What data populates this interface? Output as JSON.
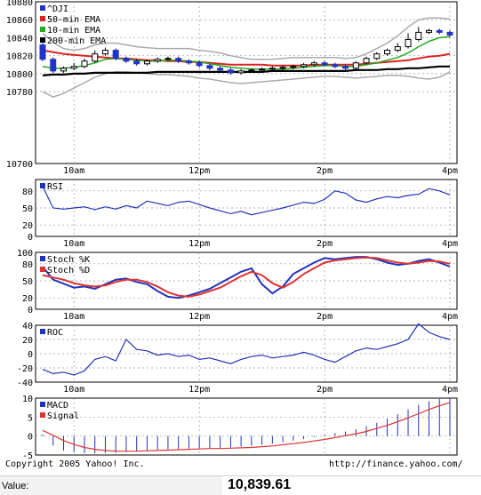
{
  "footer": {
    "copyright": "Copyright 2005 Yahoo! Inc.",
    "url": "http://finance.yahoo.com/"
  },
  "value_bar": {
    "label": "Value:",
    "value": "10,839.61"
  },
  "colors": {
    "candle": "#2233cc",
    "ema50": "#dd2222",
    "ema10": "#22aa22",
    "ema200": "#000000",
    "bollinger": "#aaaaaa",
    "indicator": "#2233bb",
    "signal": "#dd3333"
  },
  "chart_data": [
    {
      "type": "candlestick",
      "panel": "price",
      "ylim": [
        10700,
        10880
      ],
      "yticks": [
        10700,
        10780,
        10800,
        10820,
        10840,
        10860,
        10880
      ],
      "xtick_labels": [
        "10am",
        "12pm",
        "2pm",
        "4pm"
      ],
      "legend": [
        "^DJI",
        "50-min EMA",
        "10-min EMA",
        "200-min EMA"
      ],
      "x_minutes": [
        0,
        10,
        20,
        30,
        40,
        50,
        60,
        70,
        80,
        90,
        100,
        110,
        120,
        130,
        140,
        150,
        160,
        170,
        180,
        190,
        200,
        210,
        220,
        230,
        240,
        250,
        260,
        270,
        280,
        290,
        300,
        310,
        320,
        330,
        340,
        350,
        360,
        370,
        380,
        390
      ],
      "close": [
        10816,
        10803,
        10806,
        10808,
        10814,
        10822,
        10826,
        10817,
        10814,
        10811,
        10814,
        10816,
        10817,
        10814,
        10812,
        10809,
        10806,
        10804,
        10801,
        10803,
        10804,
        10805,
        10806,
        10807,
        10808,
        10810,
        10812,
        10810,
        10808,
        10806,
        10812,
        10817,
        10822,
        10826,
        10830,
        10838,
        10846,
        10848,
        10846,
        10843
      ],
      "open": [
        10832,
        10816,
        10803,
        10806,
        10808,
        10814,
        10822,
        10826,
        10817,
        10814,
        10811,
        10814,
        10816,
        10817,
        10814,
        10812,
        10809,
        10806,
        10804,
        10801,
        10803,
        10804,
        10805,
        10806,
        10807,
        10808,
        10810,
        10812,
        10810,
        10808,
        10806,
        10812,
        10817,
        10822,
        10826,
        10830,
        10838,
        10846,
        10848,
        10846
      ],
      "high": [
        10834,
        10818,
        10808,
        10812,
        10817,
        10826,
        10829,
        10828,
        10819,
        10816,
        10816,
        10818,
        10819,
        10819,
        10816,
        10814,
        10811,
        10808,
        10806,
        10805,
        10806,
        10807,
        10808,
        10809,
        10810,
        10812,
        10814,
        10814,
        10812,
        10810,
        10814,
        10819,
        10824,
        10828,
        10834,
        10845,
        10852,
        10850,
        10850,
        10848
      ],
      "low": [
        10814,
        10801,
        10801,
        10804,
        10806,
        10812,
        10820,
        10815,
        10812,
        10809,
        10809,
        10812,
        10814,
        10812,
        10810,
        10807,
        10804,
        10801,
        10799,
        10799,
        10801,
        10802,
        10803,
        10804,
        10805,
        10806,
        10808,
        10808,
        10806,
        10804,
        10804,
        10810,
        10815,
        10820,
        10824,
        10828,
        10836,
        10844,
        10844,
        10841
      ],
      "ema50": [
        10826,
        10824,
        10822,
        10821,
        10820,
        10819,
        10818,
        10817,
        10817,
        10816,
        10815,
        10815,
        10814,
        10814,
        10813,
        10813,
        10812,
        10811,
        10810,
        10810,
        10810,
        10810,
        10809,
        10809,
        10809,
        10809,
        10810,
        10810,
        10810,
        10810,
        10810,
        10811,
        10812,
        10813,
        10814,
        10815,
        10817,
        10819,
        10820,
        10822
      ],
      "ema10": [
        10808,
        10806,
        10806,
        10807,
        10809,
        10812,
        10816,
        10817,
        10816,
        10815,
        10814,
        10814,
        10815,
        10815,
        10814,
        10813,
        10811,
        10809,
        10807,
        10806,
        10805,
        10805,
        10805,
        10805,
        10806,
        10807,
        10808,
        10809,
        10809,
        10808,
        10808,
        10810,
        10812,
        10815,
        10818,
        10823,
        10830,
        10836,
        10840,
        10841
      ],
      "ema200": [
        10798,
        10799,
        10799,
        10800,
        10800,
        10801,
        10801,
        10801,
        10801,
        10801,
        10801,
        10802,
        10802,
        10802,
        10802,
        10802,
        10802,
        10802,
        10802,
        10802,
        10802,
        10802,
        10803,
        10803,
        10803,
        10803,
        10803,
        10803,
        10803,
        10803,
        10804,
        10804,
        10804,
        10805,
        10805,
        10806,
        10806,
        10807,
        10808,
        10808
      ],
      "boll_upper": [
        10845,
        10835,
        10828,
        10826,
        10828,
        10832,
        10834,
        10834,
        10832,
        10830,
        10829,
        10828,
        10828,
        10828,
        10828,
        10826,
        10825,
        10823,
        10820,
        10818,
        10816,
        10816,
        10816,
        10817,
        10818,
        10818,
        10818,
        10818,
        10818,
        10817,
        10818,
        10822,
        10828,
        10834,
        10842,
        10852,
        10860,
        10862,
        10862,
        10861
      ],
      "boll_lower": [
        10780,
        10774,
        10778,
        10784,
        10790,
        10796,
        10800,
        10802,
        10802,
        10801,
        10800,
        10799,
        10799,
        10798,
        10797,
        10795,
        10794,
        10792,
        10790,
        10789,
        10790,
        10791,
        10792,
        10793,
        10794,
        10795,
        10796,
        10797,
        10797,
        10796,
        10795,
        10796,
        10797,
        10798,
        10798,
        10797,
        10795,
        10794,
        10796,
        10802
      ]
    },
    {
      "type": "line",
      "panel": "rsi",
      "ylim": [
        0,
        100
      ],
      "yticks": [
        0,
        20,
        50,
        80
      ],
      "xtick_labels": [
        "10am",
        "12pm",
        "2pm",
        "4pm"
      ],
      "legend": [
        "RSI"
      ],
      "x_minutes": [
        0,
        10,
        20,
        30,
        40,
        50,
        60,
        70,
        80,
        90,
        100,
        110,
        120,
        130,
        140,
        150,
        160,
        170,
        180,
        190,
        200,
        210,
        220,
        230,
        240,
        250,
        260,
        270,
        280,
        290,
        300,
        310,
        320,
        330,
        340,
        350,
        360,
        370,
        380,
        390
      ],
      "values": [
        88,
        50,
        48,
        50,
        52,
        47,
        52,
        48,
        54,
        50,
        62,
        58,
        54,
        60,
        62,
        56,
        50,
        45,
        40,
        44,
        38,
        42,
        46,
        50,
        55,
        60,
        58,
        65,
        80,
        76,
        64,
        60,
        66,
        70,
        68,
        72,
        74,
        84,
        80,
        73
      ]
    },
    {
      "type": "line",
      "panel": "stochastic",
      "ylim": [
        0,
        100
      ],
      "yticks": [
        0,
        20,
        50,
        80,
        100
      ],
      "xtick_labels": [
        "10am",
        "12pm",
        "2pm",
        "4pm"
      ],
      "legend": [
        "Stoch %K",
        "Stoch %D"
      ],
      "x_minutes": [
        0,
        10,
        20,
        30,
        40,
        50,
        60,
        70,
        80,
        90,
        100,
        110,
        120,
        130,
        140,
        150,
        160,
        170,
        180,
        190,
        200,
        210,
        220,
        230,
        240,
        250,
        260,
        270,
        280,
        290,
        300,
        310,
        320,
        330,
        340,
        350,
        360,
        370,
        380,
        390
      ],
      "series": [
        {
          "name": "Stoch %K",
          "values": [
            75,
            52,
            45,
            38,
            40,
            36,
            44,
            52,
            54,
            48,
            44,
            32,
            22,
            20,
            24,
            30,
            36,
            46,
            56,
            66,
            72,
            44,
            28,
            40,
            62,
            72,
            82,
            90,
            88,
            90,
            92,
            92,
            88,
            82,
            78,
            80,
            85,
            88,
            82,
            75
          ]
        },
        {
          "name": "Stoch %D",
          "values": [
            60,
            56,
            52,
            46,
            42,
            40,
            42,
            48,
            52,
            52,
            48,
            40,
            30,
            24,
            22,
            26,
            32,
            38,
            48,
            58,
            66,
            60,
            46,
            38,
            48,
            62,
            72,
            82,
            86,
            88,
            90,
            91,
            90,
            86,
            82,
            80,
            82,
            85,
            84,
            80
          ]
        }
      ]
    },
    {
      "type": "line",
      "panel": "roc",
      "ylim": [
        -40,
        40
      ],
      "yticks": [
        -40,
        -20,
        0,
        20,
        40
      ],
      "xtick_labels": [
        "10am",
        "12pm",
        "2pm",
        "4pm"
      ],
      "legend": [
        "ROC"
      ],
      "x_minutes": [
        0,
        10,
        20,
        30,
        40,
        50,
        60,
        70,
        80,
        90,
        100,
        110,
        120,
        130,
        140,
        150,
        160,
        170,
        180,
        190,
        200,
        210,
        220,
        230,
        240,
        250,
        260,
        270,
        280,
        290,
        300,
        310,
        320,
        330,
        340,
        350,
        360,
        370,
        380,
        390
      ],
      "values": [
        -22,
        -28,
        -26,
        -30,
        -24,
        -8,
        -4,
        -10,
        20,
        6,
        4,
        -2,
        0,
        -4,
        -2,
        -8,
        -6,
        -10,
        -14,
        -8,
        -4,
        -2,
        -6,
        -4,
        -2,
        2,
        -2,
        -8,
        -12,
        -4,
        4,
        8,
        6,
        10,
        14,
        20,
        42,
        30,
        24,
        20
      ]
    },
    {
      "type": "bar+line",
      "panel": "macd",
      "ylim": [
        -5,
        10
      ],
      "yticks": [
        -5,
        0,
        5,
        10
      ],
      "legend": [
        "MACD",
        "Signal"
      ],
      "x_minutes": [
        0,
        10,
        20,
        30,
        40,
        50,
        60,
        70,
        80,
        90,
        100,
        110,
        120,
        130,
        140,
        150,
        160,
        170,
        180,
        190,
        200,
        210,
        220,
        230,
        240,
        250,
        260,
        270,
        280,
        290,
        300,
        310,
        320,
        330,
        340,
        350,
        360,
        370,
        380,
        390
      ],
      "series": [
        {
          "name": "MACD",
          "values": [
            0.5,
            -2.5,
            -3.8,
            -4.2,
            -4.5,
            -4.6,
            -4.5,
            -4.4,
            -4.2,
            -4.0,
            -3.8,
            -3.6,
            -3.5,
            -3.4,
            -3.3,
            -3.2,
            -3.2,
            -3.1,
            -3.0,
            -2.8,
            -2.6,
            -2.3,
            -2.0,
            -1.6,
            -1.2,
            -0.8,
            -0.3,
            0.3,
            0.8,
            1.2,
            1.8,
            2.6,
            3.5,
            4.6,
            5.8,
            7.0,
            8.2,
            9.2,
            9.8,
            10.0
          ]
        },
        {
          "name": "Signal",
          "values": [
            1.5,
            0.2,
            -1.2,
            -2.2,
            -3.0,
            -3.5,
            -3.8,
            -4.0,
            -4.0,
            -4.0,
            -3.9,
            -3.8,
            -3.7,
            -3.6,
            -3.5,
            -3.4,
            -3.3,
            -3.3,
            -3.2,
            -3.1,
            -3.0,
            -2.8,
            -2.6,
            -2.3,
            -2.0,
            -1.7,
            -1.3,
            -0.9,
            -0.4,
            0.1,
            0.6,
            1.2,
            2.0,
            2.8,
            3.8,
            4.8,
            5.9,
            7.0,
            8.0,
            8.8
          ]
        }
      ]
    }
  ]
}
